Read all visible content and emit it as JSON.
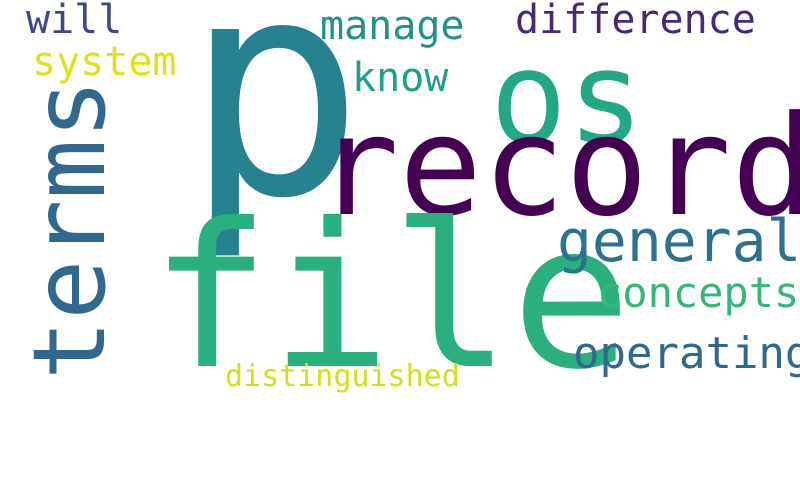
{
  "background": "#ffffff",
  "words": {
    "p": {
      "text": "p",
      "color": "#26828e"
    },
    "os": {
      "text": "os",
      "color": "#22a884"
    },
    "record": {
      "text": "record",
      "color": "#440154"
    },
    "file": {
      "text": "file",
      "color": "#2ab07f"
    },
    "terms": {
      "text": "terms",
      "color": "#31688e"
    },
    "general": {
      "text": "general",
      "color": "#2c728e"
    },
    "concepts": {
      "text": "concepts",
      "color": "#35b779"
    },
    "operating": {
      "text": "operating",
      "color": "#31688e"
    },
    "difference": {
      "text": "difference",
      "color": "#482878"
    },
    "manage": {
      "text": "manage",
      "color": "#21918c"
    },
    "know": {
      "text": "know",
      "color": "#1f9e89"
    },
    "will": {
      "text": "will",
      "color": "#3e4989"
    },
    "system": {
      "text": "system",
      "color": "#dde318"
    },
    "distinguished": {
      "text": "distinguished",
      "color": "#d0e11c"
    }
  }
}
